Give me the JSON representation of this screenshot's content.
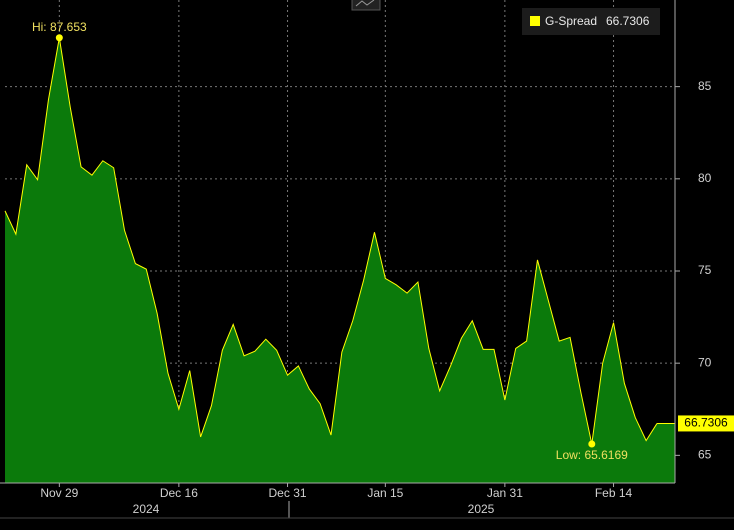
{
  "chart_data": {
    "type": "area",
    "categories": [
      null,
      null,
      null,
      null,
      null,
      "Nov 29",
      null,
      null,
      null,
      null,
      null,
      null,
      null,
      null,
      null,
      null,
      "Dec 16",
      null,
      null,
      null,
      null,
      null,
      null,
      null,
      null,
      null,
      "Dec 31",
      null,
      null,
      null,
      null,
      null,
      null,
      null,
      null,
      "Jan 15",
      null,
      null,
      null,
      null,
      null,
      null,
      null,
      null,
      null,
      null,
      "Jan 31",
      null,
      null,
      null,
      null,
      null,
      null,
      null,
      null,
      null,
      "Feb 14",
      null,
      null,
      null,
      null
    ],
    "years": [
      "2024",
      "2025"
    ],
    "series": [
      {
        "name": "G-Spread",
        "color": "#ffff00",
        "fill": "#0b7a0b",
        "values": [
          78.26,
          77.0,
          80.76,
          79.95,
          84.3,
          87.653,
          83.9,
          80.65,
          80.2,
          80.98,
          80.6,
          77.2,
          75.4,
          75.1,
          72.7,
          69.45,
          67.5,
          69.6,
          66.0,
          67.7,
          70.7,
          72.1,
          70.4,
          70.65,
          71.3,
          70.7,
          69.35,
          69.85,
          68.6,
          67.8,
          66.1,
          70.6,
          72.3,
          74.5,
          77.1,
          74.6,
          74.25,
          73.8,
          74.4,
          70.8,
          68.5,
          69.85,
          71.35,
          72.3,
          70.75,
          70.75,
          68.0,
          70.8,
          71.2,
          75.6,
          73.4,
          71.2,
          71.4,
          68.4,
          65.6169,
          70.0,
          72.2,
          68.9,
          67.05,
          65.8,
          66.7306
        ]
      }
    ],
    "annotations": {
      "high": "Hi: 87.653",
      "low": "Low: 65.6169"
    },
    "ylim": [
      63.5,
      89.7
    ],
    "yticks": [
      65,
      70,
      75,
      80,
      85
    ],
    "grid": true
  }
}
